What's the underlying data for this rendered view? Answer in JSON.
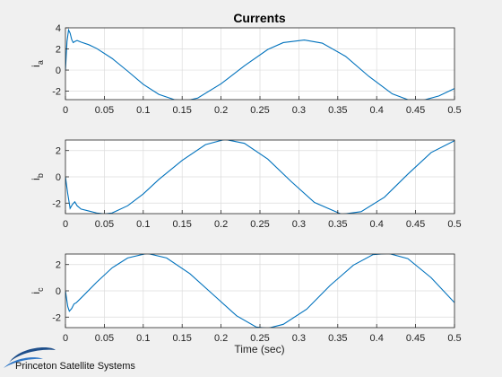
{
  "figure": {
    "title": "Currents",
    "xlabel": "Time (sec)",
    "logo_text": "Princeton Satellite Systems"
  },
  "colors": {
    "figure_bg": "#f0f0f0",
    "axes_bg": "#ffffff",
    "line": "#0072bd",
    "grid": "#dcdcdc",
    "axis": "#262626"
  },
  "chart_data": [
    {
      "type": "line",
      "ylabel_main": "i",
      "ylabel_sub": "a",
      "xlim": [
        0,
        0.5
      ],
      "ylim": [
        -2.8,
        4
      ],
      "xticks": [
        "0",
        "0.05",
        "0.1",
        "0.15",
        "0.2",
        "0.25",
        "0.3",
        "0.35",
        "0.4",
        "0.45",
        "0.5"
      ],
      "yticks": [
        "-2",
        "0",
        "2",
        "4"
      ],
      "grid": true,
      "x": [
        0,
        0.002,
        0.004,
        0.006,
        0.008,
        0.01,
        0.012,
        0.015,
        0.02,
        0.03,
        0.04,
        0.06,
        0.08,
        0.1,
        0.12,
        0.14,
        0.155,
        0.17,
        0.2,
        0.23,
        0.26,
        0.28,
        0.307,
        0.33,
        0.36,
        0.39,
        0.42,
        0.44,
        0.46,
        0.48,
        0.5
      ],
      "y": [
        0,
        2.7,
        3.8,
        3.5,
        2.9,
        2.6,
        2.7,
        2.8,
        2.65,
        2.4,
        2.05,
        1.1,
        -0.1,
        -1.35,
        -2.3,
        -2.8,
        -2.9,
        -2.65,
        -1.3,
        0.4,
        1.95,
        2.6,
        2.85,
        2.55,
        1.3,
        -0.6,
        -2.25,
        -2.8,
        -2.85,
        -2.45,
        -1.75
      ]
    },
    {
      "type": "line",
      "ylabel_main": "i",
      "ylabel_sub": "b",
      "xlim": [
        0,
        0.5
      ],
      "ylim": [
        -2.8,
        2.8
      ],
      "xticks": [
        "0",
        "0.05",
        "0.1",
        "0.15",
        "0.2",
        "0.25",
        "0.3",
        "0.35",
        "0.4",
        "0.45",
        "0.5"
      ],
      "yticks": [
        "-2",
        "0",
        "2"
      ],
      "grid": true,
      "x": [
        0,
        0.003,
        0.006,
        0.009,
        0.012,
        0.015,
        0.02,
        0.03,
        0.04,
        0.05,
        0.06,
        0.08,
        0.1,
        0.12,
        0.15,
        0.18,
        0.205,
        0.23,
        0.26,
        0.29,
        0.32,
        0.355,
        0.38,
        0.41,
        0.44,
        0.47,
        0.5
      ],
      "y": [
        0,
        -1.3,
        -2.4,
        -2.1,
        -1.9,
        -2.2,
        -2.45,
        -2.6,
        -2.75,
        -2.82,
        -2.75,
        -2.2,
        -1.3,
        -0.2,
        1.25,
        2.45,
        2.85,
        2.55,
        1.35,
        -0.35,
        -1.95,
        -2.85,
        -2.65,
        -1.55,
        0.2,
        1.85,
        2.75
      ]
    },
    {
      "type": "line",
      "ylabel_main": "i",
      "ylabel_sub": "c",
      "xlim": [
        0,
        0.5
      ],
      "ylim": [
        -2.8,
        2.8
      ],
      "xticks": [
        "0",
        "0.05",
        "0.1",
        "0.15",
        "0.2",
        "0.25",
        "0.3",
        "0.35",
        "0.4",
        "0.45",
        "0.5"
      ],
      "yticks": [
        "-2",
        "0",
        "2"
      ],
      "grid": true,
      "x": [
        0,
        0.003,
        0.005,
        0.008,
        0.011,
        0.014,
        0.02,
        0.04,
        0.06,
        0.08,
        0.105,
        0.13,
        0.16,
        0.19,
        0.22,
        0.245,
        0.26,
        0.28,
        0.31,
        0.34,
        0.37,
        0.395,
        0.415,
        0.44,
        0.47,
        0.5
      ],
      "y": [
        0,
        -1.2,
        -1.55,
        -1.35,
        -1.0,
        -0.9,
        -0.55,
        0.65,
        1.75,
        2.5,
        2.85,
        2.5,
        1.3,
        -0.3,
        -1.9,
        -2.75,
        -2.85,
        -2.55,
        -1.4,
        0.4,
        1.95,
        2.75,
        2.85,
        2.45,
        1.0,
        -0.9
      ]
    }
  ]
}
